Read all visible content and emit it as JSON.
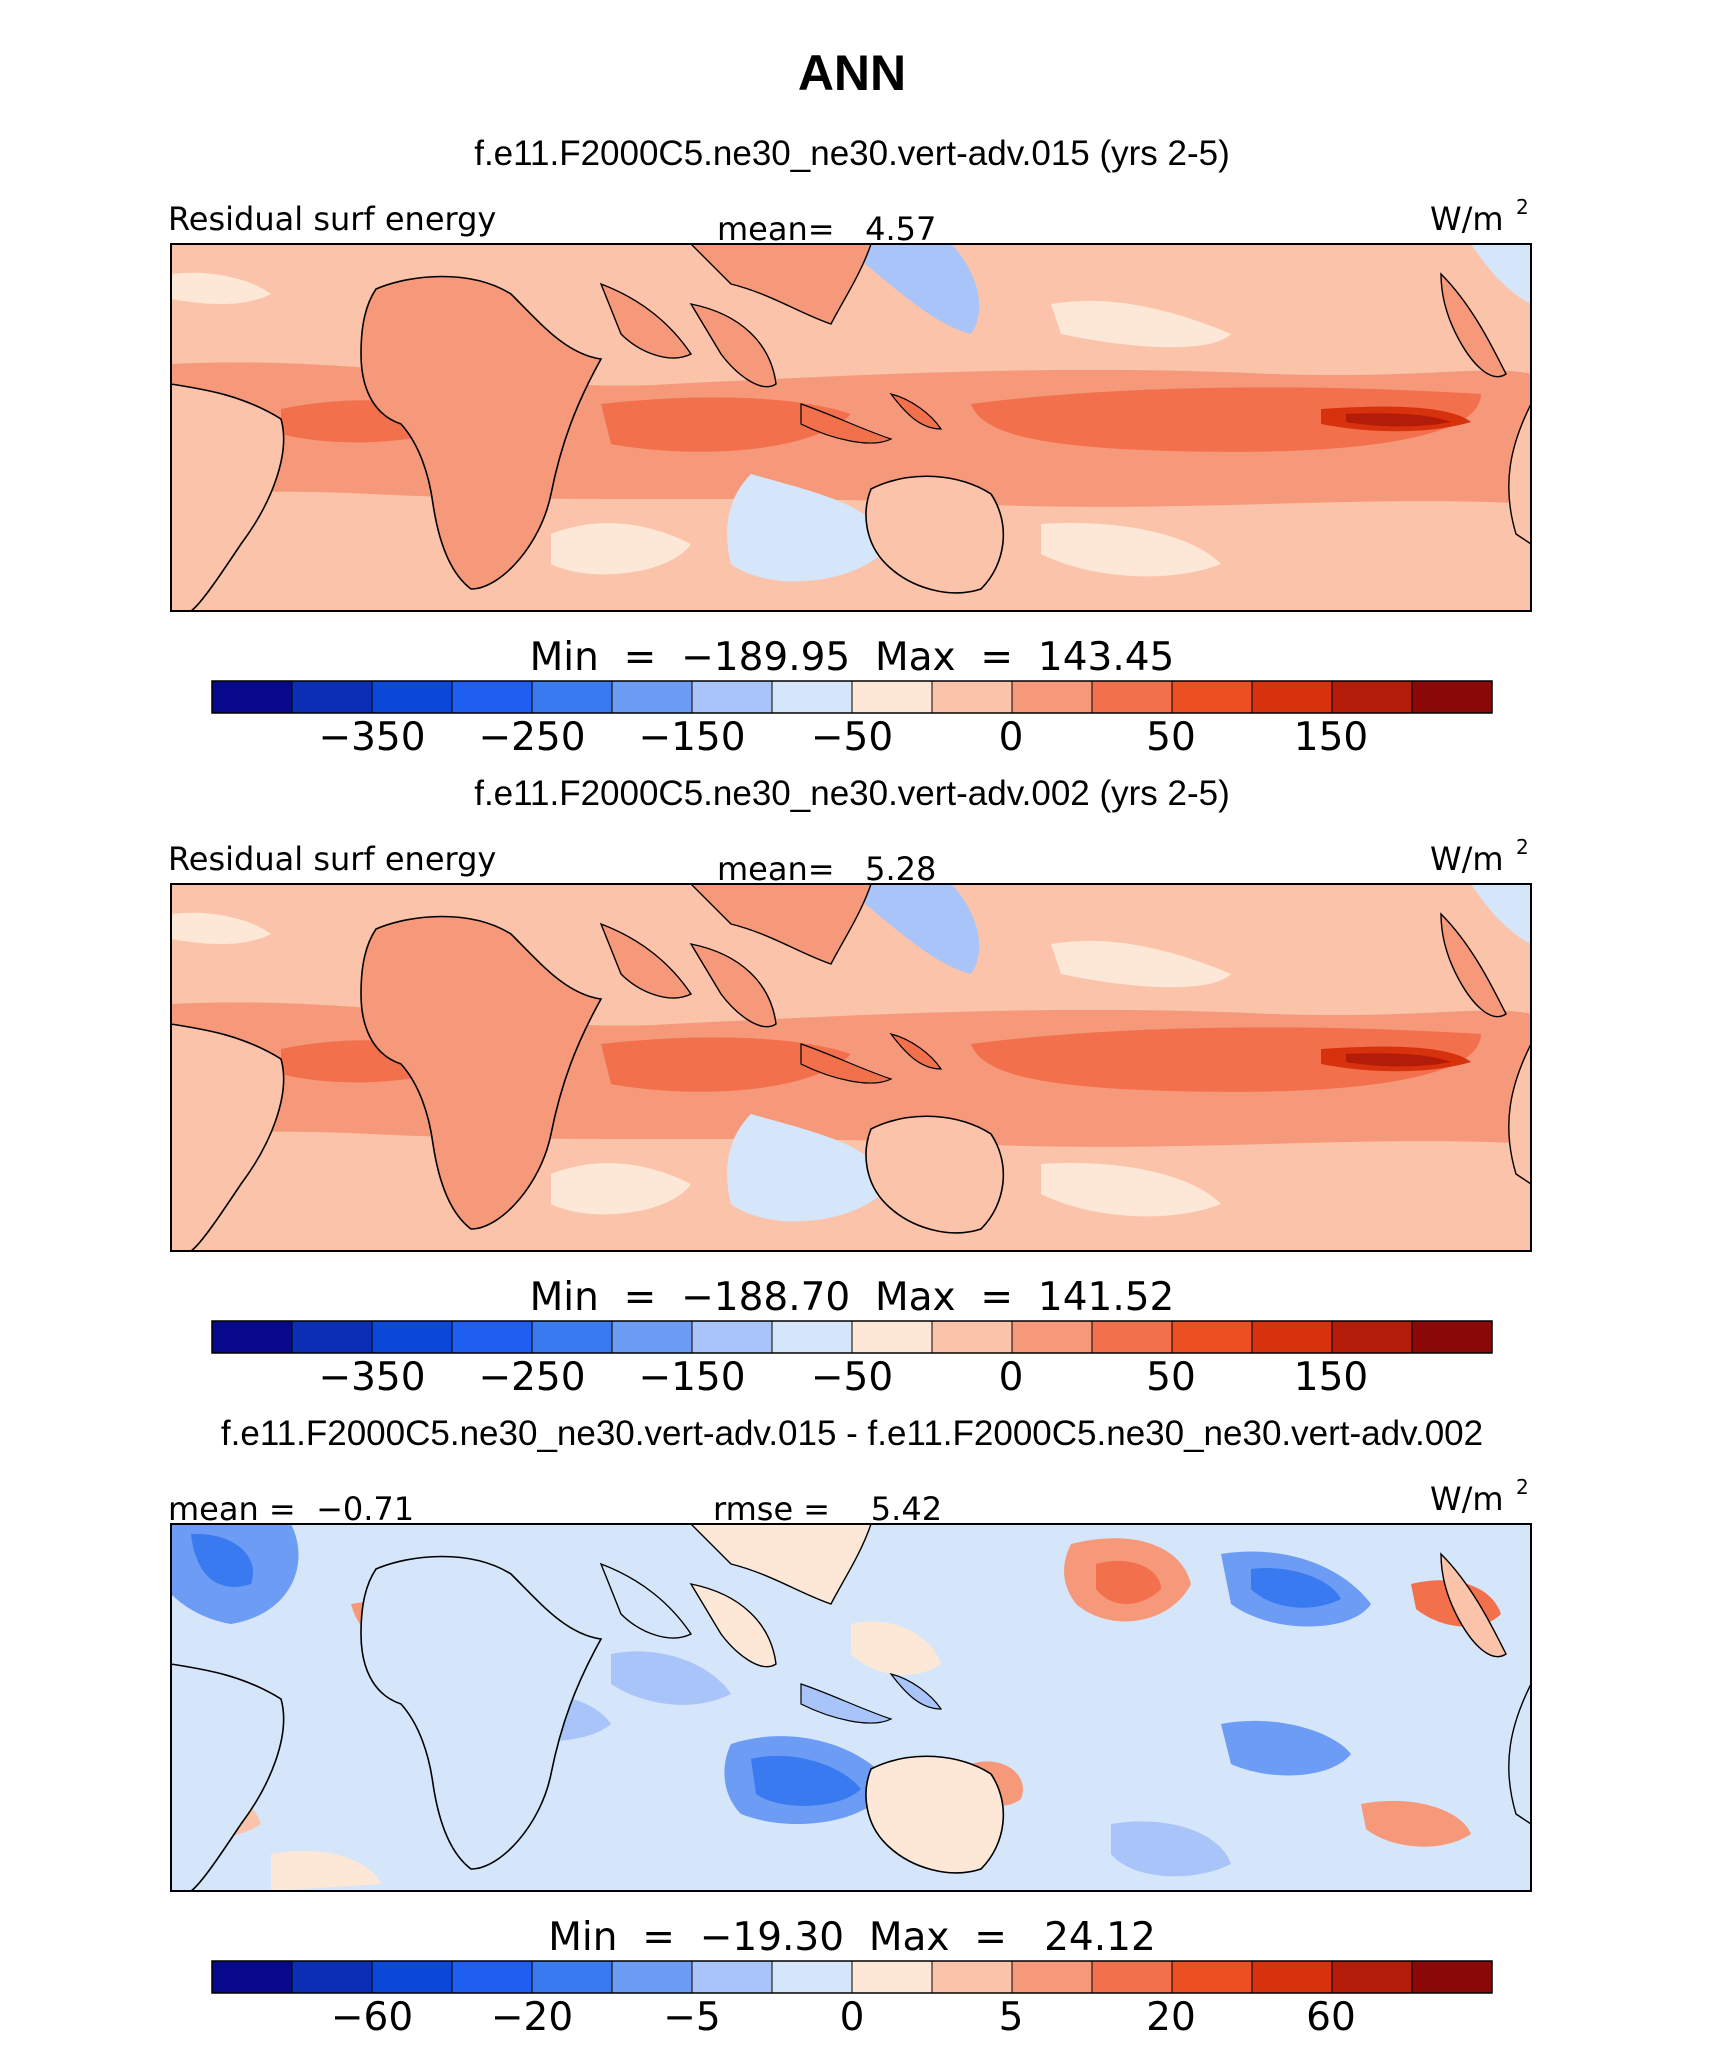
{
  "title": "ANN",
  "colorbar_colors": [
    "#08088c",
    "#0a2fb4",
    "#0c48d8",
    "#1f5ef0",
    "#3a7af0",
    "#6d9cf4",
    "#a9c4f8",
    "#d6e6fa",
    "#fde8d7",
    "#fbc4aa",
    "#f6997a",
    "#f2714c",
    "#ec4f22",
    "#d8310e",
    "#b31c08",
    "#8b0808"
  ],
  "panels": [
    {
      "subtitle": "f.e11.F2000C5.ne30_ne30.vert-adv.015 (yrs 2-5)",
      "left_label": "Residual surf energy",
      "center_label": "mean=   4.57",
      "units": "W/m",
      "units_sup": "2",
      "minmax": "Min  =  −189.95  Max  =  143.45",
      "ticks": [
        "−350",
        "−250",
        "−150",
        "−50",
        "0",
        "50",
        "150"
      ]
    },
    {
      "subtitle": "f.e11.F2000C5.ne30_ne30.vert-adv.002 (yrs 2-5)",
      "left_label": "Residual surf energy",
      "center_label": "mean=   5.28",
      "units": "W/m",
      "units_sup": "2",
      "minmax": "Min  =  −188.70  Max  =  141.52",
      "ticks": [
        "−350",
        "−250",
        "−150",
        "−50",
        "0",
        "50",
        "150"
      ]
    },
    {
      "subtitle": "f.e11.F2000C5.ne30_ne30.vert-adv.015 - f.e11.F2000C5.ne30_ne30.vert-adv.002",
      "left_label": "mean =  −0.71",
      "center_label": "rmse =    5.42",
      "units": "W/m",
      "units_sup": "2",
      "minmax": "Min  =  −19.30  Max  =   24.12",
      "ticks": [
        "−60",
        "−20",
        "−5",
        "0",
        "5",
        "20",
        "60"
      ]
    }
  ]
}
